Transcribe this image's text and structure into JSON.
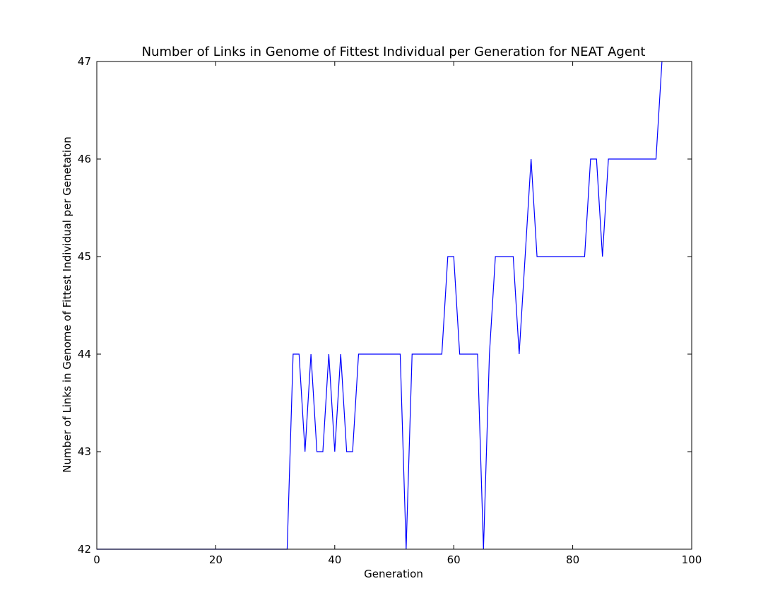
{
  "chart_data": {
    "type": "line",
    "title": "Number of Links in Genome of Fittest Individual per Generation for NEAT Agent",
    "xlabel": "Generation",
    "ylabel": "Number of Links in Genome of Fittest Individual per Genetation",
    "xlim": [
      0,
      100
    ],
    "ylim": [
      42,
      47
    ],
    "xticks": [
      0,
      20,
      40,
      60,
      80,
      100
    ],
    "yticks": [
      42,
      43,
      44,
      45,
      46,
      47
    ],
    "grid": false,
    "legend": "none",
    "series": [
      {
        "color": "#0000ff",
        "x": [
          0,
          1,
          2,
          3,
          4,
          5,
          6,
          7,
          8,
          9,
          10,
          11,
          12,
          13,
          14,
          15,
          16,
          17,
          18,
          19,
          20,
          21,
          22,
          23,
          24,
          25,
          26,
          27,
          28,
          29,
          30,
          31,
          32,
          33,
          34,
          35,
          36,
          37,
          38,
          39,
          40,
          41,
          42,
          43,
          44,
          45,
          46,
          47,
          48,
          49,
          50,
          51,
          52,
          53,
          54,
          55,
          56,
          57,
          58,
          59,
          60,
          61,
          62,
          63,
          64,
          65,
          66,
          67,
          68,
          69,
          70,
          71,
          72,
          73,
          74,
          75,
          76,
          77,
          78,
          79,
          80,
          81,
          82,
          83,
          84,
          85,
          86,
          87,
          88,
          89,
          90,
          91,
          92,
          93,
          94,
          95
        ],
        "y": [
          42,
          42,
          42,
          42,
          42,
          42,
          42,
          42,
          42,
          42,
          42,
          42,
          42,
          42,
          42,
          42,
          42,
          42,
          42,
          42,
          42,
          42,
          42,
          42,
          42,
          42,
          42,
          42,
          42,
          42,
          42,
          42,
          42,
          44,
          44,
          43,
          44,
          43,
          43,
          44,
          43,
          44,
          43,
          43,
          44,
          44,
          44,
          44,
          44,
          44,
          44,
          44,
          42,
          44,
          44,
          44,
          44,
          44,
          44,
          45,
          45,
          44,
          44,
          44,
          44,
          42,
          44,
          45,
          45,
          45,
          45,
          44,
          45,
          46,
          45,
          45,
          45,
          45,
          45,
          45,
          45,
          45,
          45,
          46,
          46,
          45,
          46,
          46,
          46,
          46,
          46,
          46,
          46,
          46,
          46,
          47
        ]
      }
    ]
  }
}
